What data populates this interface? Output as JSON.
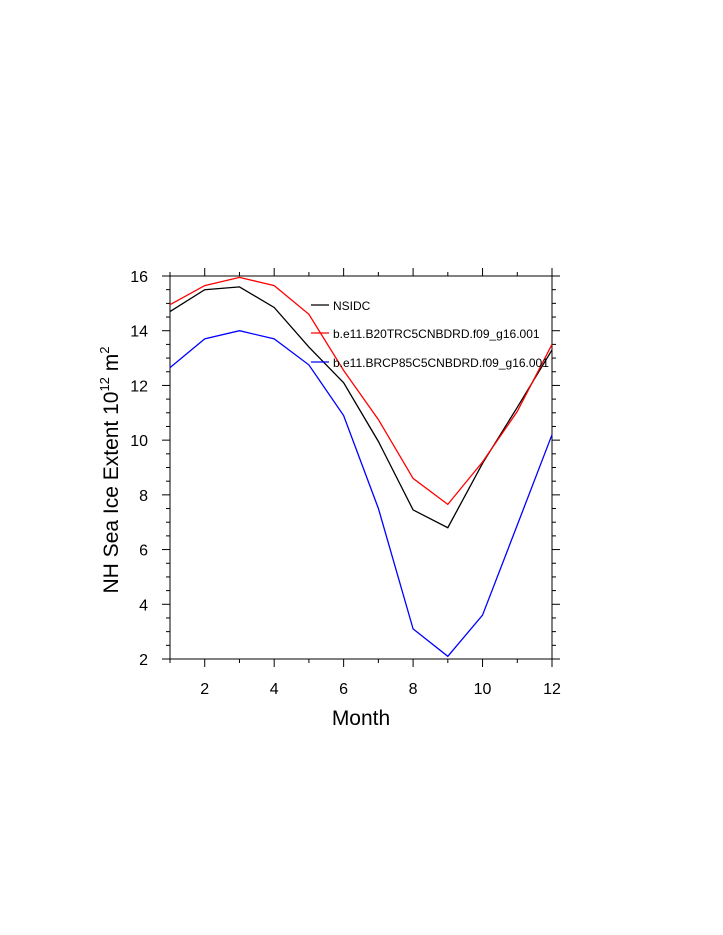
{
  "chart_data": {
    "type": "line",
    "title": "",
    "xlabel": "Month",
    "ylabel_main": "NH Sea Ice Extent 10",
    "ylabel_sup": "12",
    "ylabel_unit": " m",
    "ylabel_unit_sup": "2",
    "xlim": [
      1,
      12
    ],
    "ylim": [
      2,
      16
    ],
    "x_ticks": [
      2,
      4,
      6,
      8,
      10,
      12
    ],
    "y_ticks": [
      2,
      4,
      6,
      8,
      10,
      12,
      14,
      16
    ],
    "x_tick_labels": [
      "2",
      "4",
      "6",
      "8",
      "10",
      "12"
    ],
    "y_tick_labels": [
      "2",
      "4",
      "6",
      "8",
      "10",
      "12",
      "14",
      "16"
    ],
    "legend_position": "inside-top-right",
    "grid": false,
    "x": [
      1,
      2,
      3,
      4,
      5,
      6,
      7,
      8,
      9,
      10,
      11,
      12
    ],
    "series": [
      {
        "name": "NSIDC",
        "color": "#000000",
        "values": [
          14.7,
          15.5,
          15.6,
          14.85,
          13.4,
          12.1,
          9.95,
          7.45,
          6.8,
          9.15,
          11.2,
          13.3
        ]
      },
      {
        "name": "b.e11.B20TRC5CNBDRD.f09_g16.001",
        "color": "#ff0000",
        "values": [
          14.95,
          15.65,
          15.95,
          15.65,
          14.6,
          12.55,
          10.75,
          8.6,
          7.65,
          9.2,
          11.05,
          13.5
        ]
      },
      {
        "name": "b.e11.BRCP85C5CNBDRD.f09_g16.001",
        "color": "#0000ff",
        "values": [
          12.65,
          13.7,
          14.0,
          13.7,
          12.75,
          10.9,
          7.5,
          3.1,
          2.1,
          3.6,
          6.9,
          10.2
        ]
      }
    ]
  }
}
